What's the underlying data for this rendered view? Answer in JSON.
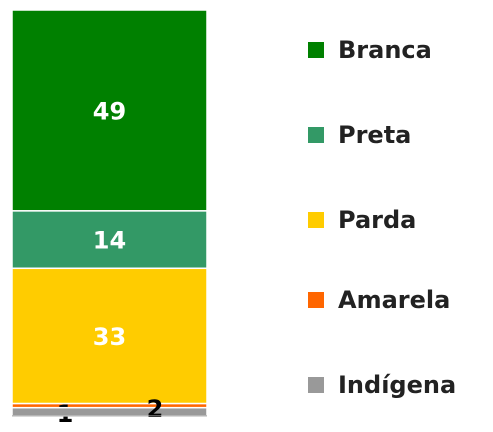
{
  "chart_data": {
    "type": "stacked-bar",
    "series": [
      {
        "name": "Branca",
        "color": "#008000",
        "values": [
          49
        ]
      },
      {
        "name": "Preta",
        "color": "#339966",
        "values": [
          14
        ]
      },
      {
        "name": "Parda",
        "color": "#ffcc00",
        "values": [
          33
        ]
      },
      {
        "name": "Amarela",
        "color": "#ff6600",
        "values": [
          1
        ]
      },
      {
        "name": "Indígena",
        "color": "#999999",
        "values": [
          2
        ]
      }
    ]
  }
}
